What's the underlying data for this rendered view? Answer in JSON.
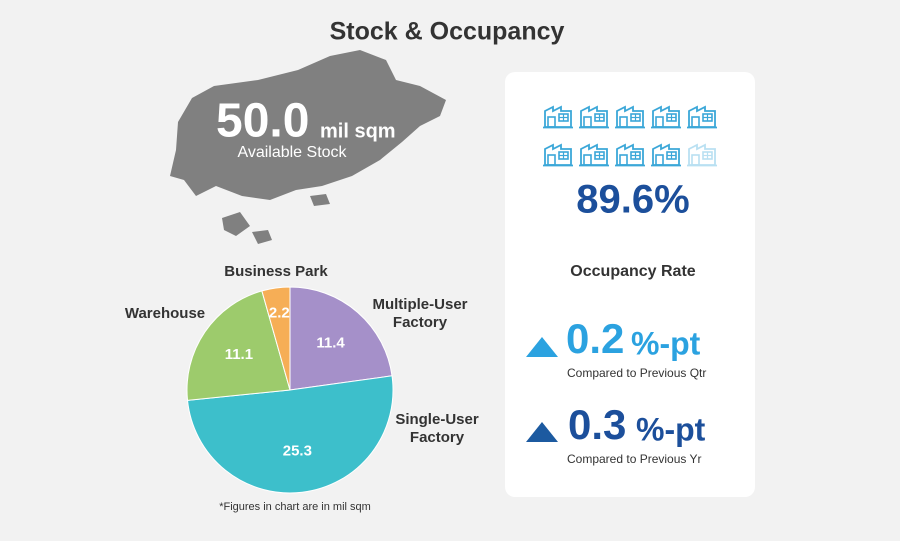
{
  "title": "Stock & Occupancy",
  "stock": {
    "value": "50.0",
    "unit": "mil sqm",
    "caption": "Available Stock"
  },
  "chart_data": {
    "type": "pie",
    "categories": [
      "Multiple-User Factory",
      "Single-User Factory",
      "Warehouse",
      "Business Park"
    ],
    "values": [
      11.4,
      25.3,
      11.1,
      2.2
    ],
    "colors": [
      "#a590c9",
      "#3dbfcb",
      "#9dcb6c",
      "#f6ae56"
    ],
    "note": "*Figures in chart are in mil sqm"
  },
  "occupancy": {
    "rate": "89.6%",
    "label": "Occupancy Rate",
    "changes": [
      {
        "value": "0.2",
        "unit": "%-pt",
        "caption": "Compared to Previous Qtr"
      },
      {
        "value": "0.3",
        "unit": "%-pt",
        "caption": "Compared to Previous Yr"
      }
    ]
  }
}
